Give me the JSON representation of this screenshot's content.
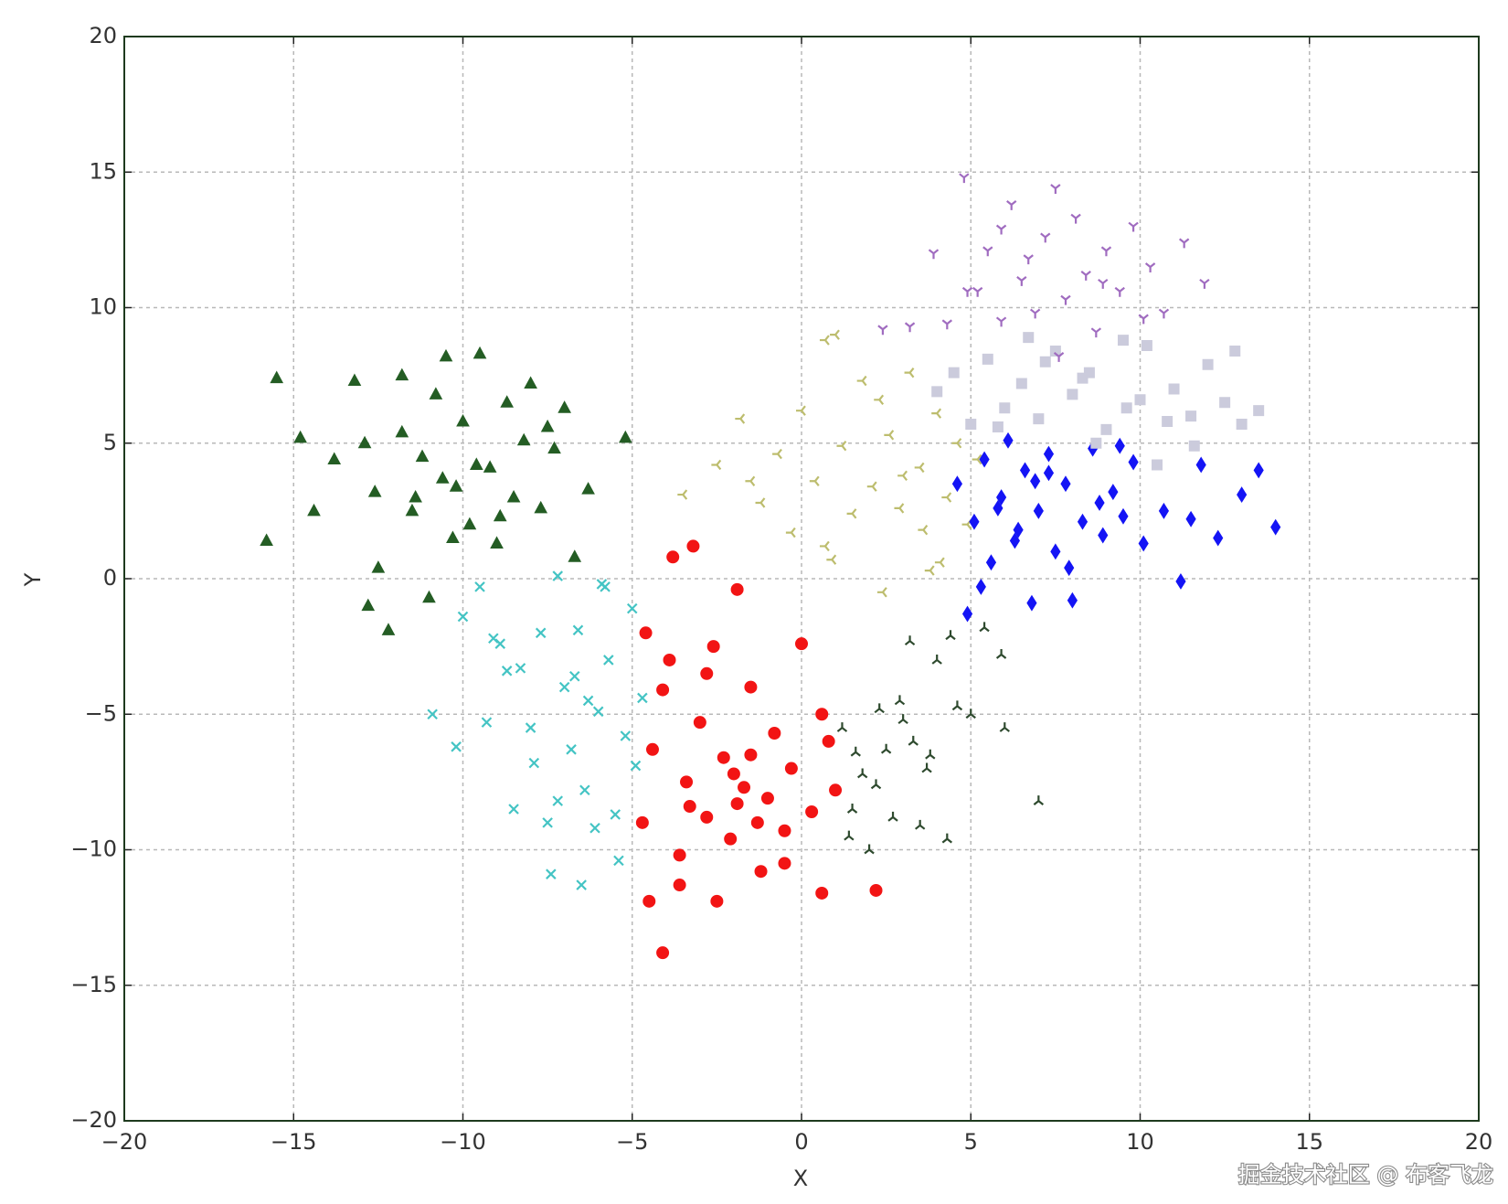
{
  "chart_data": {
    "type": "scatter",
    "xlabel": "X",
    "ylabel": "Y",
    "watermark": "掘金技术社区 @ 布客飞龙",
    "xlim": [
      -20,
      20
    ],
    "ylim": [
      -20,
      20
    ],
    "grid": true,
    "xticks": [
      {
        "value": -20,
        "label": "−20"
      },
      {
        "value": -15,
        "label": "−15"
      },
      {
        "value": -10,
        "label": "−10"
      },
      {
        "value": -5,
        "label": "−5"
      },
      0,
      5,
      10,
      15,
      20
    ],
    "yticks": [
      {
        "value": -20,
        "label": "−20"
      },
      {
        "value": -15,
        "label": "−15"
      },
      {
        "value": -10,
        "label": "−10"
      },
      {
        "value": -5,
        "label": "−5"
      },
      0,
      5,
      10,
      15,
      20
    ],
    "series": [
      {
        "color": "#245d24",
        "marker": "^",
        "x": [
          -15.5,
          -14.8,
          -15.8,
          -14.4,
          -13.8,
          -13.2,
          -12.9,
          -12.5,
          -12.2,
          -12.6,
          -11.8,
          -11.5,
          -11.2,
          -11.0,
          -10.8,
          -10.5,
          -10.2,
          -10.0,
          -9.8,
          -9.5,
          -9.2,
          -9.0,
          -8.7,
          -8.5,
          -8.2,
          -8.0,
          -7.7,
          -7.3,
          -7.0,
          -6.7,
          -6.3,
          -5.2,
          -11.8,
          -10.6,
          -9.6,
          -8.9,
          -10.3,
          -11.4,
          -12.8,
          -7.5
        ],
        "values": [
          7.4,
          5.2,
          1.4,
          2.5,
          4.4,
          7.3,
          5.0,
          0.4,
          -1.9,
          3.2,
          7.5,
          2.5,
          4.5,
          -0.7,
          6.8,
          8.2,
          3.4,
          5.8,
          2.0,
          8.3,
          4.1,
          1.3,
          6.5,
          3.0,
          5.1,
          7.2,
          2.6,
          4.8,
          6.3,
          0.8,
          3.3,
          5.2,
          5.4,
          3.7,
          4.2,
          2.3,
          1.5,
          3.0,
          -1.0,
          5.6
        ]
      },
      {
        "color": "#44c4c4",
        "marker": "x",
        "x": [
          -10.9,
          -10.2,
          -10.0,
          -9.5,
          -9.3,
          -9.1,
          -8.5,
          -8.3,
          -8.0,
          -7.7,
          -7.4,
          -7.2,
          -7.0,
          -6.8,
          -6.5,
          -6.3,
          -6.1,
          -5.9,
          -5.7,
          -5.5,
          -5.2,
          -5.0,
          -4.9,
          -6.7,
          -6.0,
          -7.5,
          -8.7,
          -6.4,
          -5.4,
          -7.9,
          -8.9,
          -6.6,
          -4.7,
          -5.8,
          -7.2
        ],
        "values": [
          -5.0,
          -6.2,
          -1.4,
          -0.3,
          -5.3,
          -2.2,
          -8.5,
          -3.3,
          -5.5,
          -2.0,
          -10.9,
          -8.2,
          -4.0,
          -6.3,
          -11.3,
          -4.5,
          -9.2,
          -0.2,
          -3.0,
          -8.7,
          -5.8,
          -1.1,
          -6.9,
          -3.6,
          -4.9,
          -9.0,
          -3.4,
          -7.8,
          -10.4,
          -6.8,
          -2.4,
          -1.9,
          -4.4,
          -0.3,
          0.1
        ]
      },
      {
        "color": "#f21414",
        "marker": "o",
        "x": [
          -4.7,
          -4.5,
          -4.4,
          -4.1,
          -3.9,
          -3.6,
          -3.4,
          -3.2,
          -3.0,
          -2.8,
          -2.5,
          -2.3,
          -2.1,
          -1.9,
          -1.7,
          -1.5,
          -1.2,
          -1.0,
          -0.8,
          -0.5,
          -0.3,
          0.0,
          0.3,
          0.6,
          0.8,
          1.0,
          2.2,
          -4.1,
          -3.3,
          -2.6,
          -1.5,
          -0.5,
          0.6,
          -3.8,
          -2.0,
          -1.3,
          -2.8,
          -4.6,
          -1.9,
          -3.6
        ],
        "values": [
          -9.0,
          -11.9,
          -6.3,
          -13.8,
          -3.0,
          -10.2,
          -7.5,
          1.2,
          -5.3,
          -8.8,
          -11.9,
          -6.6,
          -9.6,
          -0.4,
          -7.7,
          -4.0,
          -10.8,
          -8.1,
          -5.7,
          -9.3,
          -7.0,
          -2.4,
          -8.6,
          -11.6,
          -6.0,
          -7.8,
          -11.5,
          -4.1,
          -8.4,
          -2.5,
          -6.5,
          -10.5,
          -5.0,
          0.8,
          -7.2,
          -9.0,
          -3.5,
          -2.0,
          -8.3,
          -11.3
        ]
      },
      {
        "color": "#2e4a2e",
        "marker": "2",
        "x": [
          1.2,
          1.5,
          1.8,
          2.0,
          2.3,
          2.5,
          2.7,
          3.0,
          3.2,
          3.5,
          3.8,
          4.0,
          4.3,
          4.6,
          5.0,
          5.4,
          5.9,
          6.0,
          7.0,
          1.6,
          2.2,
          2.9,
          3.7,
          4.4,
          1.4,
          3.3
        ],
        "values": [
          -5.5,
          -8.5,
          -7.2,
          -10.0,
          -4.8,
          -6.3,
          -8.8,
          -5.2,
          -2.3,
          -9.1,
          -6.5,
          -3.0,
          -9.6,
          -4.7,
          -5.0,
          -1.8,
          -2.8,
          -5.5,
          -8.2,
          -6.4,
          -7.6,
          -4.5,
          -7.0,
          -2.1,
          -9.5,
          -6.0
        ]
      },
      {
        "color": "#bdbd6e",
        "marker": "3",
        "x": [
          -3.5,
          -2.5,
          -1.8,
          -1.2,
          -0.7,
          -0.3,
          0.0,
          0.4,
          0.7,
          0.9,
          1.2,
          1.5,
          1.8,
          2.1,
          2.4,
          2.6,
          2.9,
          3.2,
          3.5,
          3.8,
          4.0,
          4.3,
          4.6,
          4.9,
          5.2,
          0.7,
          2.3,
          3.0,
          1.0,
          3.6,
          -1.5,
          4.1
        ],
        "values": [
          3.1,
          4.2,
          5.9,
          2.8,
          4.6,
          1.7,
          6.2,
          3.6,
          8.8,
          0.7,
          4.9,
          2.4,
          7.3,
          3.4,
          -0.5,
          5.3,
          2.6,
          7.6,
          4.1,
          0.3,
          6.1,
          3.0,
          5.0,
          2.0,
          4.4,
          1.2,
          6.6,
          3.8,
          9.0,
          1.8,
          3.6,
          0.6
        ]
      },
      {
        "color": "#1414f5",
        "marker": "d",
        "x": [
          4.6,
          4.9,
          5.1,
          5.4,
          5.6,
          5.9,
          6.1,
          6.3,
          6.6,
          6.8,
          7.0,
          7.3,
          7.5,
          7.8,
          8.0,
          8.3,
          8.6,
          8.9,
          9.2,
          9.5,
          9.8,
          10.1,
          10.7,
          11.2,
          11.8,
          12.3,
          13.0,
          13.5,
          14.0,
          5.8,
          6.9,
          7.9,
          8.8,
          6.4,
          7.3,
          5.3,
          9.4,
          11.5
        ],
        "values": [
          3.5,
          -1.3,
          2.1,
          4.4,
          0.6,
          3.0,
          5.1,
          1.4,
          4.0,
          -0.9,
          2.5,
          4.6,
          1.0,
          3.5,
          -0.8,
          2.1,
          4.8,
          1.6,
          3.2,
          2.3,
          4.3,
          1.3,
          2.5,
          -0.1,
          4.2,
          1.5,
          3.1,
          4.0,
          1.9,
          2.6,
          3.6,
          0.4,
          2.8,
          1.8,
          3.9,
          -0.3,
          4.9,
          2.2
        ]
      },
      {
        "color": "#cbcbdc",
        "marker": "s",
        "x": [
          4.0,
          4.5,
          5.0,
          5.5,
          6.0,
          6.5,
          7.0,
          7.5,
          8.0,
          8.5,
          9.0,
          9.5,
          10.0,
          10.5,
          11.0,
          11.5,
          12.0,
          12.5,
          13.0,
          13.5,
          5.8,
          7.2,
          8.7,
          10.2,
          11.6,
          9.6,
          6.7,
          12.8,
          8.3,
          10.8
        ],
        "values": [
          6.9,
          7.6,
          5.7,
          8.1,
          6.3,
          7.2,
          5.9,
          8.4,
          6.8,
          7.6,
          5.5,
          8.8,
          6.6,
          4.2,
          7.0,
          6.0,
          7.9,
          6.5,
          5.7,
          6.2,
          5.6,
          8.0,
          5.0,
          8.6,
          4.9,
          6.3,
          8.9,
          8.4,
          7.4,
          5.8
        ]
      },
      {
        "color": "#a06cc0",
        "marker": "1",
        "x": [
          3.2,
          3.9,
          4.3,
          4.8,
          5.2,
          5.5,
          5.9,
          6.2,
          6.5,
          6.9,
          7.2,
          7.5,
          7.8,
          8.1,
          8.4,
          8.7,
          9.0,
          9.4,
          9.8,
          10.3,
          10.7,
          11.3,
          11.9,
          4.9,
          6.7,
          7.6,
          8.9,
          5.9,
          10.1,
          2.4
        ],
        "values": [
          9.3,
          12.0,
          9.4,
          14.8,
          10.6,
          12.1,
          9.5,
          13.8,
          11.0,
          9.8,
          12.6,
          14.4,
          10.3,
          13.3,
          11.2,
          9.1,
          12.1,
          10.6,
          13.0,
          11.5,
          9.8,
          12.4,
          10.9,
          10.6,
          11.8,
          8.2,
          10.9,
          12.9,
          9.6,
          9.2
        ]
      }
    ]
  }
}
